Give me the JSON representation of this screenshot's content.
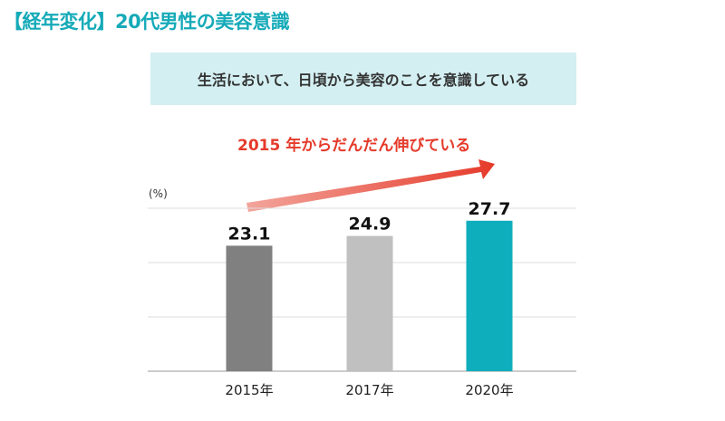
{
  "title": "【経年変化】20代男性の美容意識",
  "banner": "生活において、日頃から美容のことを意識している",
  "annotation": "2015 年からだんだん伸びている",
  "chart_data": {
    "type": "bar",
    "ylabel": "(%)",
    "categories": [
      "2015年",
      "2017年",
      "2020年"
    ],
    "values": [
      23.1,
      24.9,
      27.7
    ],
    "colors": [
      "#808080",
      "#c0c0c0",
      "#0eaebd"
    ],
    "ylim": [
      0,
      30
    ],
    "grid": true,
    "trend_arrow_color": "#e53a2a"
  }
}
